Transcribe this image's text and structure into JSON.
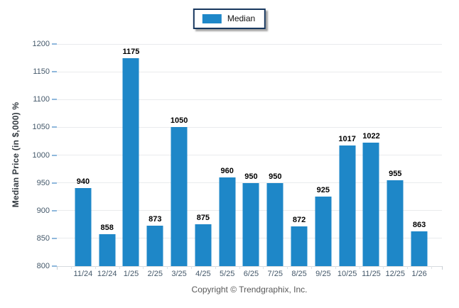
{
  "legend": {
    "label": "Median"
  },
  "footer": {
    "copyright": "Copyright © Trendgraphix, Inc."
  },
  "colors": {
    "bar": "#1E87C8",
    "legend_border": "#17375E",
    "gridline": "#E9EBED",
    "baseline": "#D6DADE",
    "y_tick_mark": "#8FB8DC",
    "tick_label": "#44586A",
    "value_label": "#000000",
    "copyright": "#595959",
    "background": "#FFFFFF"
  },
  "chart_data": {
    "type": "bar",
    "title": "",
    "xlabel": "",
    "ylabel": "Median Price (in $,000) %",
    "categories": [
      "11/24",
      "12/24",
      "1/25",
      "2/25",
      "3/25",
      "4/25",
      "5/25",
      "6/25",
      "7/25",
      "8/25",
      "9/25",
      "10/25",
      "11/25",
      "12/25",
      "1/26"
    ],
    "series": [
      {
        "name": "Median",
        "values": [
          940,
          858,
          1175,
          873,
          1050,
          875,
          960,
          950,
          950,
          872,
          925,
          1017,
          1022,
          955,
          863
        ]
      }
    ],
    "ylim": [
      800,
      1200
    ],
    "ytick_step": 50,
    "grid": "horizontal",
    "legend_position": "top-center",
    "value_labels": true
  }
}
